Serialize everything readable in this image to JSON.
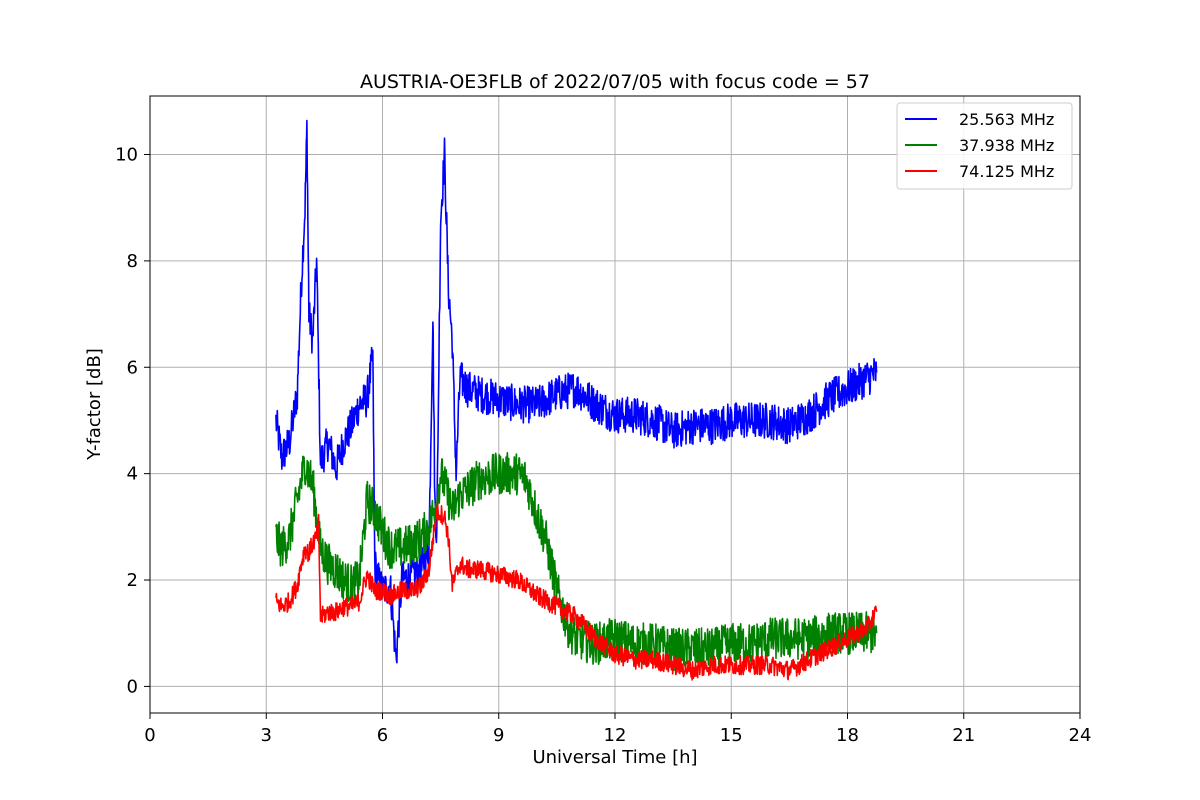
{
  "chart_data": {
    "type": "line",
    "title": "AUSTRIA-OE3FLB of 2022/07/05 with focus code = 57",
    "xlabel": "Universal Time [h]",
    "ylabel": "Y-factor [dB]",
    "xlim": [
      0,
      24
    ],
    "ylim": [
      -0.5,
      11.1
    ],
    "xticks": [
      0,
      3,
      6,
      9,
      12,
      15,
      18,
      21,
      24
    ],
    "yticks": [
      0,
      2,
      4,
      6,
      8,
      10
    ],
    "grid": true,
    "legend_position": "top-right",
    "series": [
      {
        "name": "25.563 MHz",
        "color": "#0000ff",
        "x": [
          3.25,
          3.4,
          3.6,
          3.8,
          3.9,
          4.0,
          4.05,
          4.1,
          4.2,
          4.3,
          4.4,
          4.6,
          4.8,
          5.0,
          5.2,
          5.4,
          5.6,
          5.75,
          5.8,
          5.9,
          6.0,
          6.2,
          6.35,
          6.5,
          6.8,
          7.0,
          7.2,
          7.3,
          7.35,
          7.4,
          7.5,
          7.6,
          7.7,
          7.8,
          7.9,
          8.0,
          8.2,
          8.5,
          9.0,
          9.5,
          10.0,
          10.5,
          11.0,
          11.5,
          12.0,
          12.5,
          13.0,
          13.5,
          14.0,
          14.5,
          15.0,
          15.5,
          16.0,
          16.5,
          17.0,
          17.5,
          18.0,
          18.5,
          18.75
        ],
        "y": [
          5.0,
          4.3,
          4.6,
          5.5,
          7.5,
          9.0,
          10.5,
          7.0,
          6.5,
          8.0,
          4.2,
          4.6,
          4.1,
          4.6,
          4.9,
          5.3,
          5.4,
          6.2,
          2.3,
          2.0,
          1.8,
          1.9,
          0.5,
          2.0,
          2.1,
          2.2,
          2.6,
          7.0,
          3.5,
          2.8,
          8.8,
          10.0,
          7.5,
          6.5,
          4.0,
          5.8,
          5.6,
          5.5,
          5.4,
          5.3,
          5.3,
          5.5,
          5.6,
          5.3,
          5.1,
          5.1,
          5.0,
          4.8,
          4.9,
          4.9,
          5.0,
          5.0,
          5.0,
          4.9,
          5.1,
          5.4,
          5.6,
          5.8,
          5.9
        ],
        "noise": 0.35
      },
      {
        "name": "37.938 MHz",
        "color": "#008000",
        "x": [
          3.25,
          3.4,
          3.6,
          3.8,
          4.0,
          4.2,
          4.4,
          4.6,
          4.8,
          5.0,
          5.2,
          5.4,
          5.6,
          5.8,
          6.0,
          6.2,
          6.5,
          6.8,
          7.0,
          7.2,
          7.4,
          7.5,
          7.6,
          7.8,
          8.0,
          8.2,
          8.5,
          9.0,
          9.5,
          9.7,
          10.0,
          10.2,
          10.5,
          10.8,
          11.0,
          11.5,
          12.0,
          12.5,
          13.0,
          13.5,
          14.0,
          14.5,
          15.0,
          15.5,
          16.0,
          16.5,
          17.0,
          17.5,
          18.0,
          18.5,
          18.75
        ],
        "y": [
          2.8,
          2.6,
          2.8,
          3.5,
          4.2,
          3.8,
          2.6,
          2.3,
          2.2,
          2.0,
          1.9,
          2.0,
          3.5,
          3.3,
          2.9,
          2.6,
          2.6,
          2.7,
          2.8,
          3.0,
          3.5,
          4.0,
          3.8,
          3.3,
          3.6,
          3.7,
          3.9,
          4.0,
          4.0,
          3.9,
          3.2,
          2.8,
          1.8,
          1.1,
          0.9,
          0.8,
          0.9,
          0.8,
          0.8,
          0.7,
          0.7,
          0.7,
          0.8,
          0.8,
          0.9,
          0.9,
          0.9,
          1.0,
          1.0,
          1.0,
          1.0
        ],
        "noise": 0.4
      },
      {
        "name": "74.125 MHz",
        "color": "#ff0000",
        "x": [
          3.25,
          3.4,
          3.6,
          3.8,
          3.9,
          4.0,
          4.1,
          4.2,
          4.3,
          4.35,
          4.4,
          4.6,
          4.8,
          5.0,
          5.2,
          5.4,
          5.6,
          5.8,
          6.0,
          6.2,
          6.5,
          6.8,
          7.0,
          7.2,
          7.4,
          7.6,
          7.7,
          7.8,
          8.0,
          8.2,
          8.5,
          9.0,
          9.5,
          10.0,
          10.5,
          11.0,
          11.5,
          12.0,
          12.5,
          13.0,
          13.5,
          14.0,
          14.5,
          15.0,
          15.5,
          16.0,
          16.5,
          17.0,
          17.5,
          18.0,
          18.5,
          18.75
        ],
        "y": [
          1.6,
          1.5,
          1.6,
          1.9,
          2.3,
          2.6,
          2.5,
          2.7,
          2.8,
          3.1,
          1.3,
          1.4,
          1.4,
          1.5,
          1.5,
          1.6,
          2.1,
          1.8,
          1.8,
          1.7,
          1.8,
          1.8,
          1.9,
          2.2,
          3.3,
          3.2,
          2.8,
          1.9,
          2.3,
          2.2,
          2.2,
          2.1,
          2.0,
          1.7,
          1.5,
          1.3,
          0.9,
          0.6,
          0.5,
          0.5,
          0.4,
          0.3,
          0.4,
          0.4,
          0.4,
          0.4,
          0.3,
          0.5,
          0.7,
          0.9,
          1.1,
          1.4
        ],
        "noise": 0.18
      }
    ]
  }
}
